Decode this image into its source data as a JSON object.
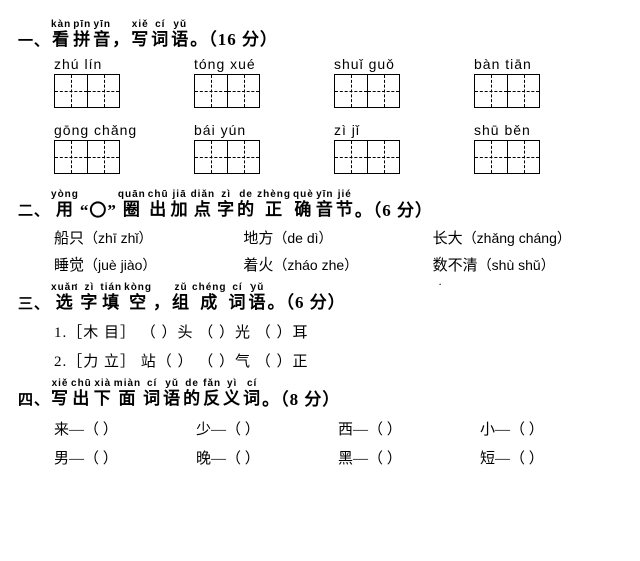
{
  "s1": {
    "num": "一、",
    "title": [
      {
        "py": "kàn",
        "hz": "看"
      },
      {
        "py": "pīn",
        "hz": "拼"
      },
      {
        "py": "yīn",
        "hz": "音"
      },
      {
        "plain": "，"
      },
      {
        "py": "xiě",
        "hz": "写"
      },
      {
        "py": "cí",
        "hz": "词"
      },
      {
        "py": "yǔ",
        "hz": "语"
      },
      {
        "plain": "。（16 分）"
      }
    ],
    "row1": [
      "zhú  lín",
      "tóng  xué",
      "shuǐ  guǒ",
      "bàn  tiān"
    ],
    "row2": [
      "gōng  chǎng",
      "bái  yún",
      "zì    jǐ",
      "shū  běn"
    ]
  },
  "s2": {
    "num": "二、",
    "title": [
      {
        "py": "yòng",
        "hz": "用"
      },
      {
        "plain": "“〇”"
      },
      {
        "py": "quān",
        "hz": "圈"
      },
      {
        "py": "chū",
        "hz": "出"
      },
      {
        "py": "jiā",
        "hz": "加"
      },
      {
        "py": "diǎn",
        "hz": "点"
      },
      {
        "py": "zì",
        "hz": "字"
      },
      {
        "py": "de",
        "hz": "的"
      },
      {
        "py": "zhèng",
        "hz": "正"
      },
      {
        "py": "què",
        "hz": "确"
      },
      {
        "py": "yīn",
        "hz": "音"
      },
      {
        "py": "jié",
        "hz": "节"
      },
      {
        "plain": "。（6 分）"
      }
    ],
    "rows": [
      [
        {
          "pre": "船",
          "dot": "只",
          "opts": "（zhī  zhǐ）"
        },
        {
          "pre": "地",
          "dot": "方",
          "opts": "（de  dì）"
        },
        {
          "pre": "",
          "dot": "长",
          "post": "大",
          "opts": "（zhǎng  cháng）"
        }
      ],
      [
        {
          "pre": "睡",
          "dot": "觉",
          "opts": "（juè  jiào）"
        },
        {
          "pre": "",
          "dot": "着",
          "post": "火",
          "opts": "（zháo  zhe）"
        },
        {
          "pre": "",
          "dot": "数",
          "post": "不清",
          "opts": "（shù  shǔ）"
        }
      ]
    ]
  },
  "s3": {
    "num": "三、",
    "title": [
      {
        "py": "xuǎn",
        "hz": "选"
      },
      {
        "py": "zì",
        "hz": "字"
      },
      {
        "py": "tián",
        "hz": "填"
      },
      {
        "py": "kòng",
        "hz": "空"
      },
      {
        "plain": "，"
      },
      {
        "py": "zǔ",
        "hz": "组"
      },
      {
        "py": "chéng",
        "hz": "成"
      },
      {
        "py": "cí",
        "hz": "词"
      },
      {
        "py": "yǔ",
        "hz": "语"
      },
      {
        "plain": "。（6 分）"
      }
    ],
    "lines": [
      "1.［木    目］    （     ）头       （     ）光      （     ）耳",
      "2.［力    立］    站（     ）       （     ）气      （     ）正"
    ]
  },
  "s4": {
    "num": "四、",
    "title": [
      {
        "py": "xiě",
        "hz": "写"
      },
      {
        "py": "chū",
        "hz": "出"
      },
      {
        "py": "xià",
        "hz": "下"
      },
      {
        "py": "miàn",
        "hz": "面"
      },
      {
        "py": "cí",
        "hz": "词"
      },
      {
        "py": "yǔ",
        "hz": "语"
      },
      {
        "py": "de",
        "hz": "的"
      },
      {
        "py": "fǎn",
        "hz": "反"
      },
      {
        "py": "yì",
        "hz": "义"
      },
      {
        "py": "cí",
        "hz": "词"
      },
      {
        "plain": "。（8 分）"
      }
    ],
    "rows": [
      [
        "来—（     ）",
        "少—（     ）",
        "西—（     ）",
        "小—（     ）"
      ],
      [
        "男—（     ）",
        "晚—（     ）",
        "黑—（     ）",
        "短—（     ）"
      ]
    ]
  }
}
